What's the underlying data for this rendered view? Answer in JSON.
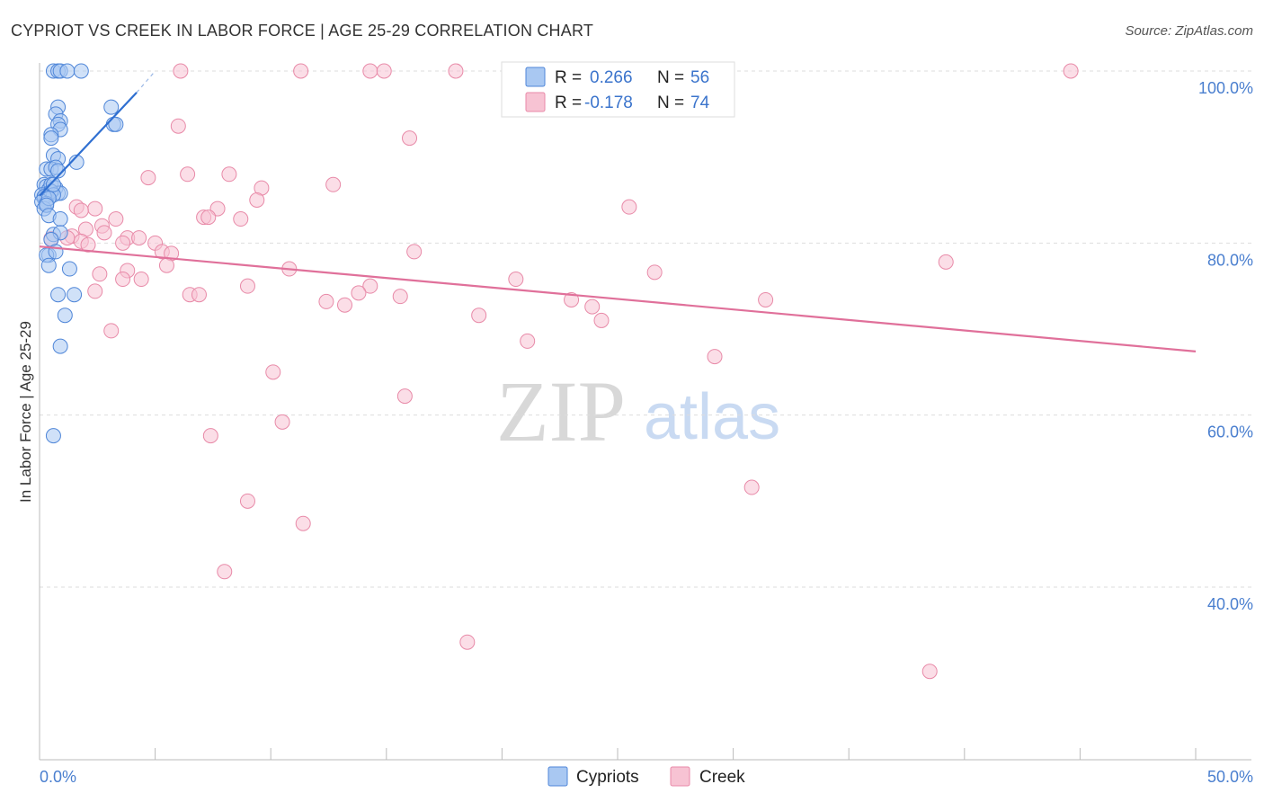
{
  "chart_data": {
    "type": "scatter",
    "title": "CYPRIOT VS CREEK IN LABOR FORCE | AGE 25-29 CORRELATION CHART",
    "source": "Source: ZipAtlas.com",
    "xlabel": "",
    "ylabel": "In Labor Force | Age 25-29",
    "xlim": [
      0,
      50
    ],
    "ylim": [
      22,
      102
    ],
    "x_tick_labels": {
      "min": "0.0%",
      "max": "50.0%"
    },
    "y_ticks": [
      {
        "value": 100,
        "label": "100.0%"
      },
      {
        "value": 80,
        "label": "80.0%"
      },
      {
        "value": 60,
        "label": "60.0%"
      },
      {
        "value": 40,
        "label": "40.0%"
      }
    ],
    "grid": true,
    "legend_position": "top-center",
    "watermark": {
      "zip": "ZIP",
      "atlas": "atlas"
    },
    "colors": {
      "cypriots_fill": "#a9c8f2",
      "cypriots_stroke": "#4f86d8",
      "cypriots_line": "#2f6fd1",
      "creek_fill": "#f7c3d3",
      "creek_stroke": "#e88aa8",
      "creek_line": "#e0709a",
      "grid": "#dddddd",
      "axis": "#bbbbbb"
    },
    "legend": {
      "r_label": "R =",
      "n_label": "N =",
      "rows": [
        {
          "series": "Cypriots",
          "r": "0.266",
          "n": "56"
        },
        {
          "series": "Creek",
          "r": "-0.178",
          "n": "74"
        }
      ]
    },
    "series": [
      {
        "name": "Cypriots",
        "trend": {
          "x0": 0.0,
          "y0": 85.5,
          "x1": 4.2,
          "y1": 97.5,
          "dash_to_x": 5.0,
          "dash_to_y": 100.0
        },
        "points": [
          [
            0.6,
            100
          ],
          [
            0.8,
            100
          ],
          [
            0.9,
            100
          ],
          [
            1.2,
            100
          ],
          [
            1.8,
            100
          ],
          [
            0.8,
            95.8
          ],
          [
            0.7,
            95.0
          ],
          [
            0.9,
            94.2
          ],
          [
            0.8,
            93.8
          ],
          [
            0.9,
            93.2
          ],
          [
            0.5,
            92.6
          ],
          [
            0.5,
            92.2
          ],
          [
            3.1,
            95.8
          ],
          [
            3.2,
            93.8
          ],
          [
            3.3,
            93.8
          ],
          [
            0.6,
            90.2
          ],
          [
            0.8,
            89.8
          ],
          [
            1.6,
            89.4
          ],
          [
            0.3,
            88.6
          ],
          [
            0.5,
            88.6
          ],
          [
            0.7,
            88.8
          ],
          [
            0.8,
            88.4
          ],
          [
            0.2,
            86.8
          ],
          [
            0.3,
            86.6
          ],
          [
            0.4,
            86.2
          ],
          [
            0.5,
            86.8
          ],
          [
            0.7,
            86.4
          ],
          [
            0.8,
            85.8
          ],
          [
            0.9,
            85.8
          ],
          [
            0.1,
            85.6
          ],
          [
            0.2,
            85.2
          ],
          [
            0.3,
            85.0
          ],
          [
            0.5,
            86.0
          ],
          [
            0.6,
            85.6
          ],
          [
            0.2,
            85.4
          ],
          [
            0.1,
            84.8
          ],
          [
            0.3,
            84.6
          ],
          [
            0.2,
            84.0
          ],
          [
            0.4,
            85.2
          ],
          [
            0.6,
            86.8
          ],
          [
            0.3,
            84.4
          ],
          [
            0.4,
            83.2
          ],
          [
            0.9,
            82.8
          ],
          [
            0.6,
            81.0
          ],
          [
            0.9,
            81.2
          ],
          [
            0.4,
            78.6
          ],
          [
            0.3,
            78.6
          ],
          [
            0.4,
            77.4
          ],
          [
            1.3,
            77.0
          ],
          [
            0.8,
            74.0
          ],
          [
            1.5,
            74.0
          ],
          [
            1.1,
            71.6
          ],
          [
            0.9,
            68.0
          ],
          [
            0.6,
            57.6
          ],
          [
            0.5,
            80.4
          ],
          [
            0.7,
            79.0
          ]
        ]
      },
      {
        "name": "Creek",
        "trend": {
          "x0": 0.0,
          "y0": 79.6,
          "x1": 50.0,
          "y1": 67.4
        },
        "points": [
          [
            6.1,
            100
          ],
          [
            11.3,
            100
          ],
          [
            14.3,
            100
          ],
          [
            14.9,
            100
          ],
          [
            18.0,
            100
          ],
          [
            44.6,
            100
          ],
          [
            6.0,
            93.6
          ],
          [
            16.0,
            92.2
          ],
          [
            6.4,
            88.0
          ],
          [
            8.2,
            88.0
          ],
          [
            4.7,
            87.6
          ],
          [
            12.7,
            86.8
          ],
          [
            9.6,
            86.4
          ],
          [
            9.4,
            85.0
          ],
          [
            7.7,
            84.0
          ],
          [
            2.4,
            84.0
          ],
          [
            1.6,
            84.2
          ],
          [
            1.8,
            83.8
          ],
          [
            25.5,
            84.2
          ],
          [
            7.1,
            83.0
          ],
          [
            7.3,
            83.0
          ],
          [
            3.3,
            82.8
          ],
          [
            8.7,
            82.8
          ],
          [
            2.7,
            82.0
          ],
          [
            2.0,
            81.6
          ],
          [
            2.8,
            81.2
          ],
          [
            3.8,
            80.6
          ],
          [
            4.3,
            80.6
          ],
          [
            1.4,
            80.8
          ],
          [
            1.8,
            80.2
          ],
          [
            3.6,
            80.0
          ],
          [
            5.0,
            80.0
          ],
          [
            1.2,
            80.6
          ],
          [
            5.3,
            79.0
          ],
          [
            5.7,
            78.8
          ],
          [
            16.2,
            79.0
          ],
          [
            5.5,
            77.4
          ],
          [
            10.8,
            77.0
          ],
          [
            3.8,
            76.8
          ],
          [
            2.6,
            76.4
          ],
          [
            26.6,
            76.6
          ],
          [
            39.2,
            77.8
          ],
          [
            3.6,
            75.8
          ],
          [
            4.4,
            75.8
          ],
          [
            20.6,
            75.8
          ],
          [
            9.0,
            75.0
          ],
          [
            14.3,
            75.0
          ],
          [
            2.4,
            74.4
          ],
          [
            13.8,
            74.2
          ],
          [
            6.5,
            74.0
          ],
          [
            6.9,
            74.0
          ],
          [
            15.6,
            73.8
          ],
          [
            23.0,
            73.4
          ],
          [
            31.4,
            73.4
          ],
          [
            12.4,
            73.2
          ],
          [
            13.2,
            72.8
          ],
          [
            23.9,
            72.6
          ],
          [
            19.0,
            71.6
          ],
          [
            24.3,
            71.0
          ],
          [
            3.1,
            69.8
          ],
          [
            21.1,
            68.6
          ],
          [
            29.2,
            66.8
          ],
          [
            10.1,
            65.0
          ],
          [
            15.8,
            62.2
          ],
          [
            10.5,
            59.2
          ],
          [
            7.4,
            57.6
          ],
          [
            30.8,
            51.6
          ],
          [
            9.0,
            50.0
          ],
          [
            11.4,
            47.4
          ],
          [
            8.0,
            41.8
          ],
          [
            18.5,
            33.6
          ],
          [
            38.5,
            30.2
          ],
          [
            0.5,
            80.5
          ],
          [
            2.1,
            79.8
          ]
        ]
      }
    ]
  }
}
